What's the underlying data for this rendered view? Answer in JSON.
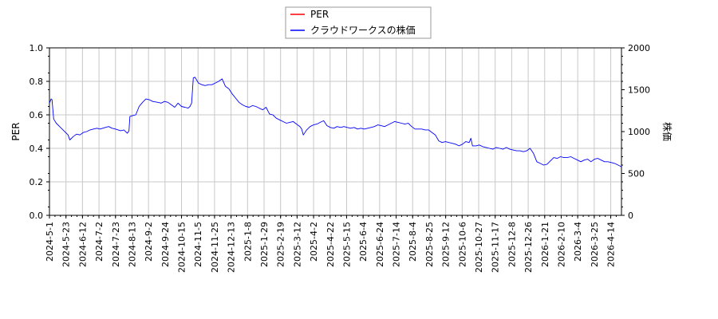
{
  "chart_data": {
    "type": "line",
    "legend": {
      "placement": "top-center",
      "entries": [
        {
          "label": "PER",
          "color": "#ff0000"
        },
        {
          "label": "クラウドワークスの株価",
          "color": "#0000ff"
        }
      ]
    },
    "y_left": {
      "label": "PER",
      "range": [
        0,
        1.0
      ],
      "ticks": [
        "0.0",
        "0.2",
        "0.4",
        "0.6",
        "0.8",
        "1.0"
      ]
    },
    "y_right": {
      "label": "株価",
      "range": [
        0,
        2000
      ],
      "ticks": [
        "0",
        "500",
        "1000",
        "1500",
        "2000"
      ]
    },
    "x_ticks": [
      "2024-5-1",
      "2024-5-23",
      "2024-6-12",
      "2024-7-2",
      "2024-7-23",
      "2024-8-13",
      "2024-9-2",
      "2024-9-24",
      "2024-10-15",
      "2024-11-5",
      "2024-11-25",
      "2024-12-13",
      "2025-1-8",
      "2025-1-29",
      "2025-2-19",
      "2025-3-12",
      "2025-4-2",
      "2025-4-22",
      "2025-5-15",
      "2025-6-4",
      "2025-6-24",
      "2025-7-14",
      "2025-8-4",
      "2025-8-25",
      "2025-9-12",
      "2025-10-6",
      "2025-10-27",
      "2025-11-17",
      "2025-12-8",
      "2025-12-26",
      "2026-1-21",
      "2026-2-10",
      "2026-3-4",
      "2026-3-25",
      "2026-4-14"
    ],
    "grid": true,
    "series": [
      {
        "name": "PER",
        "axis": "left",
        "color": "#ff0000",
        "values": []
      },
      {
        "name": "クラウドワークスの株価",
        "axis": "right",
        "color": "#0000ff",
        "points": [
          [
            0,
            1340
          ],
          [
            1,
            1390
          ],
          [
            1.5,
            1380
          ],
          [
            2.5,
            1150
          ],
          [
            4,
            1100
          ],
          [
            6,
            1060
          ],
          [
            8,
            1020
          ],
          [
            11,
            960
          ],
          [
            12,
            900
          ],
          [
            14,
            940
          ],
          [
            16,
            970
          ],
          [
            18,
            960
          ],
          [
            20,
            990
          ],
          [
            22,
            1000
          ],
          [
            24,
            1020
          ],
          [
            26,
            1030
          ],
          [
            28,
            1040
          ],
          [
            30,
            1030
          ],
          [
            33,
            1050
          ],
          [
            35,
            1060
          ],
          [
            37,
            1040
          ],
          [
            39,
            1030
          ],
          [
            42,
            1010
          ],
          [
            44,
            1020
          ],
          [
            46,
            980
          ],
          [
            47,
            1010
          ],
          [
            47.5,
            1180
          ],
          [
            49,
            1190
          ],
          [
            51,
            1200
          ],
          [
            53,
            1300
          ],
          [
            55,
            1350
          ],
          [
            57,
            1390
          ],
          [
            59,
            1380
          ],
          [
            61,
            1360
          ],
          [
            64,
            1350
          ],
          [
            66,
            1340
          ],
          [
            68,
            1360
          ],
          [
            70,
            1350
          ],
          [
            72,
            1320
          ],
          [
            74,
            1290
          ],
          [
            76,
            1340
          ],
          [
            78,
            1300
          ],
          [
            80,
            1290
          ],
          [
            82,
            1280
          ],
          [
            83,
            1300
          ],
          [
            84,
            1340
          ],
          [
            85,
            1640
          ],
          [
            86,
            1650
          ],
          [
            88,
            1580
          ],
          [
            90,
            1560
          ],
          [
            92,
            1550
          ],
          [
            94,
            1560
          ],
          [
            96,
            1560
          ],
          [
            98,
            1580
          ],
          [
            100,
            1600
          ],
          [
            102,
            1630
          ],
          [
            104,
            1540
          ],
          [
            106,
            1510
          ],
          [
            108,
            1450
          ],
          [
            110,
            1400
          ],
          [
            112,
            1350
          ],
          [
            114,
            1320
          ],
          [
            116,
            1300
          ],
          [
            118,
            1290
          ],
          [
            120,
            1310
          ],
          [
            122,
            1300
          ],
          [
            124,
            1280
          ],
          [
            126,
            1260
          ],
          [
            128,
            1290
          ],
          [
            130,
            1210
          ],
          [
            132,
            1200
          ],
          [
            134,
            1160
          ],
          [
            136,
            1140
          ],
          [
            138,
            1120
          ],
          [
            140,
            1100
          ],
          [
            142,
            1110
          ],
          [
            144,
            1120
          ],
          [
            146,
            1090
          ],
          [
            148,
            1060
          ],
          [
            149,
            1030
          ],
          [
            150,
            960
          ],
          [
            152,
            1020
          ],
          [
            154,
            1060
          ],
          [
            156,
            1080
          ],
          [
            158,
            1090
          ],
          [
            160,
            1110
          ],
          [
            162,
            1130
          ],
          [
            164,
            1070
          ],
          [
            166,
            1050
          ],
          [
            168,
            1040
          ],
          [
            170,
            1060
          ],
          [
            172,
            1050
          ],
          [
            174,
            1060
          ],
          [
            176,
            1050
          ],
          [
            178,
            1040
          ],
          [
            180,
            1050
          ],
          [
            182,
            1030
          ],
          [
            184,
            1040
          ],
          [
            186,
            1030
          ],
          [
            188,
            1040
          ],
          [
            190,
            1050
          ],
          [
            192,
            1060
          ],
          [
            194,
            1080
          ],
          [
            196,
            1070
          ],
          [
            198,
            1060
          ],
          [
            200,
            1080
          ],
          [
            202,
            1100
          ],
          [
            204,
            1120
          ],
          [
            206,
            1110
          ],
          [
            208,
            1100
          ],
          [
            210,
            1090
          ],
          [
            212,
            1100
          ],
          [
            214,
            1060
          ],
          [
            216,
            1030
          ],
          [
            218,
            1030
          ],
          [
            220,
            1030
          ],
          [
            222,
            1020
          ],
          [
            224,
            1020
          ],
          [
            226,
            990
          ],
          [
            228,
            960
          ],
          [
            230,
            890
          ],
          [
            232,
            870
          ],
          [
            234,
            880
          ],
          [
            236,
            870
          ],
          [
            238,
            860
          ],
          [
            240,
            850
          ],
          [
            242,
            830
          ],
          [
            244,
            850
          ],
          [
            246,
            880
          ],
          [
            248,
            870
          ],
          [
            249,
            920
          ],
          [
            250,
            830
          ],
          [
            252,
            830
          ],
          [
            254,
            840
          ],
          [
            256,
            820
          ],
          [
            258,
            810
          ],
          [
            260,
            800
          ],
          [
            262,
            790
          ],
          [
            264,
            810
          ],
          [
            266,
            800
          ],
          [
            268,
            790
          ],
          [
            270,
            810
          ],
          [
            272,
            790
          ],
          [
            274,
            780
          ],
          [
            276,
            770
          ],
          [
            278,
            770
          ],
          [
            280,
            760
          ],
          [
            282,
            770
          ],
          [
            284,
            800
          ],
          [
            286,
            740
          ],
          [
            288,
            640
          ],
          [
            290,
            620
          ],
          [
            292,
            600
          ],
          [
            294,
            610
          ],
          [
            296,
            650
          ],
          [
            298,
            690
          ],
          [
            300,
            680
          ],
          [
            302,
            700
          ],
          [
            304,
            690
          ],
          [
            306,
            690
          ],
          [
            308,
            700
          ],
          [
            310,
            680
          ],
          [
            312,
            660
          ],
          [
            314,
            640
          ],
          [
            316,
            660
          ],
          [
            318,
            670
          ],
          [
            320,
            640
          ],
          [
            322,
            670
          ],
          [
            324,
            680
          ],
          [
            326,
            660
          ],
          [
            328,
            640
          ],
          [
            330,
            640
          ],
          [
            332,
            630
          ],
          [
            334,
            620
          ],
          [
            336,
            600
          ],
          [
            338,
            580
          ]
        ]
      }
    ],
    "x_index_range": [
      0,
      338
    ]
  }
}
